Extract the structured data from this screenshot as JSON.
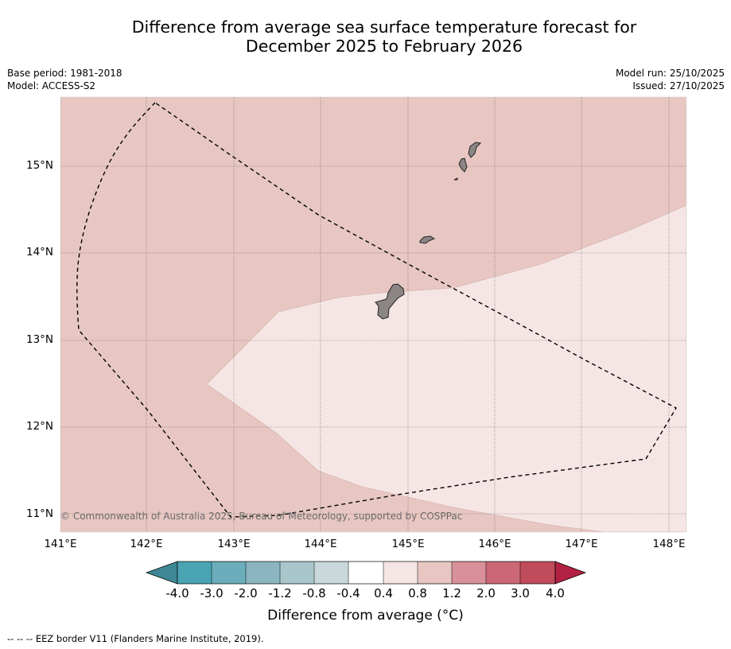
{
  "title_line1": "Difference from average sea surface temperature forecast for",
  "title_line2": "December 2025 to February 2026",
  "meta_left": [
    "Base period: 1981-2018",
    "Model: ACCESS-S2"
  ],
  "meta_right": [
    "Model run: 25/10/2025",
    "Issued: 27/10/2025"
  ],
  "latitude_labels": [
    "15°N",
    "14°N",
    "13°N",
    "12°N",
    "11°N"
  ],
  "longitude_labels": [
    "141°E",
    "142°E",
    "143°E",
    "144°E",
    "145°E",
    "146°E",
    "147°E",
    "148°E"
  ],
  "copyright": "© Commonwealth of Australia 2025, Bureau of Meteorology, supported by COSPPac",
  "legend": {
    "ticks": [
      "-4.0",
      "-3.0",
      "-2.0",
      "-1.2",
      "-0.8",
      "-0.4",
      "0.4",
      "0.8",
      "1.2",
      "2.0",
      "3.0",
      "4.0"
    ],
    "colors": [
      "#3e8896",
      "#4aa4b3",
      "#6cadbb",
      "#8bb5c0",
      "#a9c6cb",
      "#c9d8db",
      "#ffffff",
      "#f5e6e5",
      "#e8c7c2",
      "#d8909a",
      "#cc6775",
      "#c04b5a",
      "#b22042"
    ],
    "title": "Difference from average (°C)"
  },
  "map_colors": {
    "band_0.8_1.2": "#e8c7c2",
    "band_0.4_0.8": "#f5e6e5",
    "land": "#8c8585",
    "eez": "#000000"
  },
  "footer": "--  --  -- EEZ border V11 (Flanders Marine Institute, 2019)."
}
